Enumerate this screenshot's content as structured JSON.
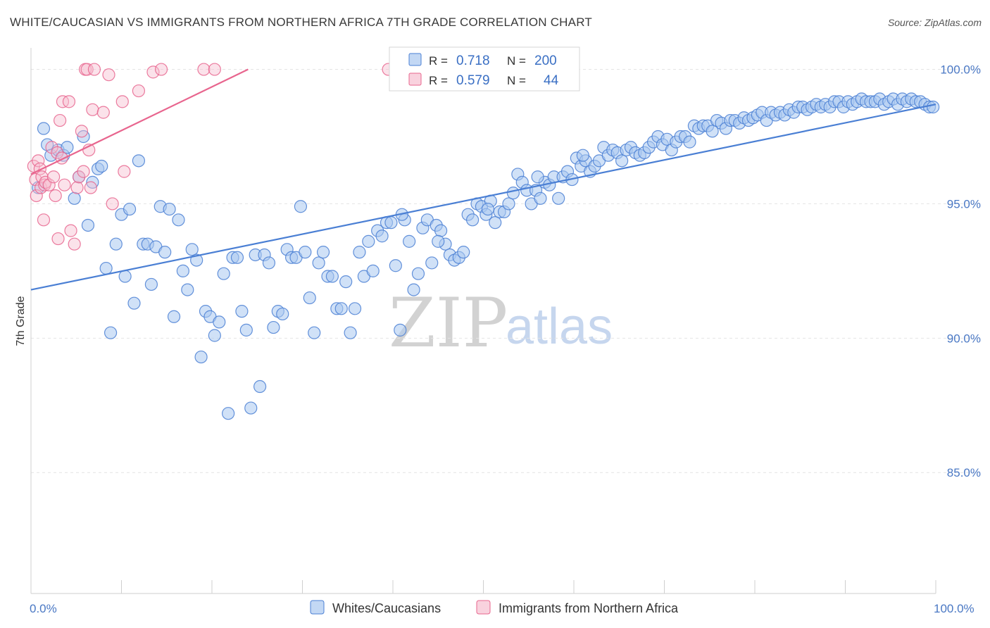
{
  "title": "WHITE/CAUCASIAN VS IMMIGRANTS FROM NORTHERN AFRICA 7TH GRADE CORRELATION CHART",
  "source": "Source: ZipAtlas.com",
  "watermark": {
    "zip": "ZIP",
    "atlas": "atlas"
  },
  "colors": {
    "blue": "#4a7fd4",
    "blue_fill": "#aac8f0",
    "pink": "#e8658e",
    "pink_fill": "#f6bfd0",
    "tick_text": "#4a78c4"
  },
  "legend": {
    "rows": [
      {
        "r_label": "R =",
        "r_value": "0.718",
        "n_label": "N =",
        "n_value": "200"
      },
      {
        "r_label": "R =",
        "r_value": "0.579",
        "n_label": "N =",
        "n_value": "44"
      }
    ]
  },
  "chart_data": {
    "type": "scatter",
    "title": "WHITE/CAUCASIAN VS IMMIGRANTS FROM NORTHERN AFRICA 7TH GRADE CORRELATION CHART",
    "xlabel": "",
    "ylabel": "7th Grade",
    "xlim": [
      0,
      100
    ],
    "ylim": [
      80.5,
      100.8
    ],
    "x_tick_labels": [
      "0.0%",
      "100.0%"
    ],
    "y_ticks": [
      85,
      90,
      95,
      100
    ],
    "y_tick_labels": [
      "85.0%",
      "90.0%",
      "95.0%",
      "100.0%"
    ],
    "grid": true,
    "legend_position": "top-center",
    "series": [
      {
        "name": "Whites/Caucasians",
        "r": 0.718,
        "n": 200,
        "trend": {
          "x": [
            0,
            100
          ],
          "y": [
            91.8,
            98.7
          ]
        },
        "points": [
          [
            0.8,
            95.6
          ],
          [
            1.4,
            97.8
          ],
          [
            1.8,
            97.2
          ],
          [
            2.2,
            96.8
          ],
          [
            3.0,
            97.0
          ],
          [
            3.6,
            96.8
          ],
          [
            4.0,
            97.1
          ],
          [
            4.8,
            95.2
          ],
          [
            5.3,
            96.0
          ],
          [
            5.8,
            97.5
          ],
          [
            6.3,
            94.2
          ],
          [
            6.8,
            95.8
          ],
          [
            7.4,
            96.3
          ],
          [
            7.8,
            96.4
          ],
          [
            8.3,
            92.6
          ],
          [
            8.8,
            90.2
          ],
          [
            9.4,
            93.5
          ],
          [
            10.0,
            94.6
          ],
          [
            10.4,
            92.3
          ],
          [
            10.9,
            94.8
          ],
          [
            11.4,
            91.3
          ],
          [
            11.9,
            96.6
          ],
          [
            12.4,
            93.5
          ],
          [
            12.9,
            93.5
          ],
          [
            13.3,
            92.0
          ],
          [
            13.8,
            93.4
          ],
          [
            14.3,
            94.9
          ],
          [
            14.8,
            93.2
          ],
          [
            15.3,
            94.8
          ],
          [
            15.8,
            90.8
          ],
          [
            16.3,
            94.4
          ],
          [
            16.8,
            92.5
          ],
          [
            17.3,
            91.8
          ],
          [
            17.8,
            93.3
          ],
          [
            18.3,
            92.9
          ],
          [
            18.8,
            89.3
          ],
          [
            19.3,
            91.0
          ],
          [
            19.8,
            90.8
          ],
          [
            20.3,
            90.1
          ],
          [
            20.8,
            90.6
          ],
          [
            21.3,
            92.4
          ],
          [
            21.8,
            87.2
          ],
          [
            22.3,
            93.0
          ],
          [
            22.8,
            93.0
          ],
          [
            23.3,
            91.0
          ],
          [
            23.8,
            90.3
          ],
          [
            24.3,
            87.4
          ],
          [
            24.8,
            93.1
          ],
          [
            25.3,
            88.2
          ],
          [
            25.8,
            93.1
          ],
          [
            26.3,
            92.8
          ],
          [
            26.8,
            90.4
          ],
          [
            27.3,
            91.0
          ],
          [
            27.8,
            90.9
          ],
          [
            28.3,
            93.3
          ],
          [
            28.8,
            93.0
          ],
          [
            29.3,
            93.0
          ],
          [
            29.8,
            94.9
          ],
          [
            30.3,
            93.2
          ],
          [
            30.8,
            91.5
          ],
          [
            31.3,
            90.2
          ],
          [
            31.8,
            92.8
          ],
          [
            32.3,
            93.2
          ],
          [
            32.8,
            92.3
          ],
          [
            33.3,
            92.3
          ],
          [
            33.8,
            91.1
          ],
          [
            34.3,
            91.1
          ],
          [
            34.8,
            92.1
          ],
          [
            35.3,
            90.2
          ],
          [
            35.8,
            91.1
          ],
          [
            36.3,
            93.2
          ],
          [
            36.8,
            92.3
          ],
          [
            37.3,
            93.6
          ],
          [
            37.8,
            92.5
          ],
          [
            38.3,
            94.0
          ],
          [
            38.8,
            93.8
          ],
          [
            39.3,
            94.3
          ],
          [
            39.8,
            94.3
          ],
          [
            40.3,
            92.7
          ],
          [
            40.8,
            90.3
          ],
          [
            41.3,
            94.4
          ],
          [
            41.8,
            93.6
          ],
          [
            42.3,
            91.8
          ],
          [
            42.8,
            92.4
          ],
          [
            43.3,
            94.1
          ],
          [
            43.8,
            94.4
          ],
          [
            44.3,
            92.8
          ],
          [
            44.8,
            94.2
          ],
          [
            45.3,
            94.0
          ],
          [
            45.8,
            93.5
          ],
          [
            46.3,
            93.1
          ],
          [
            46.8,
            92.9
          ],
          [
            47.3,
            93.0
          ],
          [
            47.8,
            93.2
          ],
          [
            48.3,
            94.6
          ],
          [
            48.8,
            94.4
          ],
          [
            49.3,
            95.0
          ],
          [
            49.8,
            94.9
          ],
          [
            50.3,
            94.6
          ],
          [
            50.8,
            95.1
          ],
          [
            51.3,
            94.3
          ],
          [
            51.8,
            94.7
          ],
          [
            52.3,
            94.7
          ],
          [
            52.8,
            95.0
          ],
          [
            53.3,
            95.4
          ],
          [
            53.8,
            96.1
          ],
          [
            54.3,
            95.8
          ],
          [
            54.8,
            95.5
          ],
          [
            55.3,
            95.0
          ],
          [
            55.8,
            95.5
          ],
          [
            56.3,
            95.2
          ],
          [
            56.8,
            95.8
          ],
          [
            57.3,
            95.7
          ],
          [
            57.8,
            96.0
          ],
          [
            58.3,
            95.2
          ],
          [
            58.8,
            96.0
          ],
          [
            59.3,
            96.2
          ],
          [
            59.8,
            95.9
          ],
          [
            60.3,
            96.7
          ],
          [
            60.8,
            96.4
          ],
          [
            61.3,
            96.6
          ],
          [
            61.8,
            96.2
          ],
          [
            62.3,
            96.4
          ],
          [
            62.8,
            96.6
          ],
          [
            63.3,
            97.1
          ],
          [
            63.8,
            96.8
          ],
          [
            64.3,
            97.0
          ],
          [
            64.8,
            96.9
          ],
          [
            65.3,
            96.6
          ],
          [
            65.8,
            97.0
          ],
          [
            66.3,
            97.1
          ],
          [
            66.8,
            96.9
          ],
          [
            67.3,
            96.8
          ],
          [
            67.8,
            96.9
          ],
          [
            68.3,
            97.1
          ],
          [
            68.8,
            97.3
          ],
          [
            69.3,
            97.5
          ],
          [
            69.8,
            97.2
          ],
          [
            70.3,
            97.4
          ],
          [
            70.8,
            97.0
          ],
          [
            71.3,
            97.3
          ],
          [
            71.8,
            97.5
          ],
          [
            72.3,
            97.5
          ],
          [
            72.8,
            97.3
          ],
          [
            73.3,
            97.9
          ],
          [
            73.8,
            97.8
          ],
          [
            74.3,
            97.9
          ],
          [
            74.8,
            97.9
          ],
          [
            75.3,
            97.7
          ],
          [
            75.8,
            98.1
          ],
          [
            76.3,
            98.0
          ],
          [
            76.8,
            97.8
          ],
          [
            77.3,
            98.1
          ],
          [
            77.8,
            98.1
          ],
          [
            78.3,
            98.0
          ],
          [
            78.8,
            98.2
          ],
          [
            79.3,
            98.1
          ],
          [
            79.8,
            98.2
          ],
          [
            80.3,
            98.3
          ],
          [
            80.8,
            98.4
          ],
          [
            81.3,
            98.1
          ],
          [
            81.8,
            98.4
          ],
          [
            82.3,
            98.3
          ],
          [
            82.8,
            98.4
          ],
          [
            83.3,
            98.3
          ],
          [
            83.8,
            98.5
          ],
          [
            84.3,
            98.4
          ],
          [
            84.8,
            98.6
          ],
          [
            85.3,
            98.6
          ],
          [
            85.8,
            98.5
          ],
          [
            86.3,
            98.6
          ],
          [
            86.8,
            98.7
          ],
          [
            87.3,
            98.6
          ],
          [
            87.8,
            98.7
          ],
          [
            88.3,
            98.6
          ],
          [
            88.8,
            98.8
          ],
          [
            89.3,
            98.8
          ],
          [
            89.8,
            98.6
          ],
          [
            90.3,
            98.8
          ],
          [
            90.8,
            98.7
          ],
          [
            91.3,
            98.8
          ],
          [
            91.8,
            98.9
          ],
          [
            92.3,
            98.8
          ],
          [
            92.8,
            98.8
          ],
          [
            93.3,
            98.8
          ],
          [
            93.8,
            98.9
          ],
          [
            94.3,
            98.7
          ],
          [
            94.8,
            98.8
          ],
          [
            95.3,
            98.9
          ],
          [
            95.8,
            98.7
          ],
          [
            96.3,
            98.9
          ],
          [
            96.8,
            98.8
          ],
          [
            97.3,
            98.9
          ],
          [
            97.8,
            98.8
          ],
          [
            98.3,
            98.8
          ],
          [
            98.8,
            98.7
          ],
          [
            99.3,
            98.6
          ],
          [
            99.7,
            98.6
          ],
          [
            41.0,
            94.6
          ],
          [
            45.0,
            93.6
          ],
          [
            50.5,
            94.8
          ],
          [
            56.0,
            96.0
          ],
          [
            61.0,
            96.8
          ]
        ]
      },
      {
        "name": "Immigrants from Northern Africa",
        "r": 0.579,
        "n": 44,
        "trend": {
          "x": [
            0,
            24
          ],
          "y": [
            96.1,
            100.0
          ]
        },
        "points": [
          [
            0.3,
            96.4
          ],
          [
            0.5,
            95.9
          ],
          [
            0.6,
            95.3
          ],
          [
            0.8,
            96.6
          ],
          [
            1.0,
            96.3
          ],
          [
            1.1,
            95.6
          ],
          [
            1.2,
            96.0
          ],
          [
            1.4,
            94.4
          ],
          [
            1.5,
            95.7
          ],
          [
            1.6,
            95.8
          ],
          [
            2.0,
            95.7
          ],
          [
            2.3,
            97.1
          ],
          [
            2.5,
            96.0
          ],
          [
            2.7,
            95.3
          ],
          [
            2.9,
            96.9
          ],
          [
            3.0,
            93.7
          ],
          [
            3.2,
            98.1
          ],
          [
            3.4,
            96.7
          ],
          [
            3.5,
            98.8
          ],
          [
            3.7,
            95.7
          ],
          [
            4.2,
            98.8
          ],
          [
            4.4,
            94.0
          ],
          [
            4.8,
            93.5
          ],
          [
            5.1,
            95.6
          ],
          [
            5.3,
            96.0
          ],
          [
            5.6,
            97.7
          ],
          [
            5.8,
            96.2
          ],
          [
            6.0,
            100.0
          ],
          [
            6.2,
            100.0
          ],
          [
            6.4,
            97.0
          ],
          [
            6.6,
            95.6
          ],
          [
            6.8,
            98.5
          ],
          [
            7.0,
            100.0
          ],
          [
            8.0,
            98.4
          ],
          [
            8.6,
            99.8
          ],
          [
            9.0,
            95.0
          ],
          [
            10.1,
            98.8
          ],
          [
            10.3,
            96.2
          ],
          [
            11.9,
            99.2
          ],
          [
            13.5,
            99.9
          ],
          [
            14.4,
            100.0
          ],
          [
            19.1,
            100.0
          ],
          [
            20.3,
            100.0
          ],
          [
            39.5,
            100.0
          ]
        ]
      }
    ]
  },
  "bottom_legend": {
    "items": [
      "Whites/Caucasians",
      "Immigrants from Northern Africa"
    ]
  }
}
